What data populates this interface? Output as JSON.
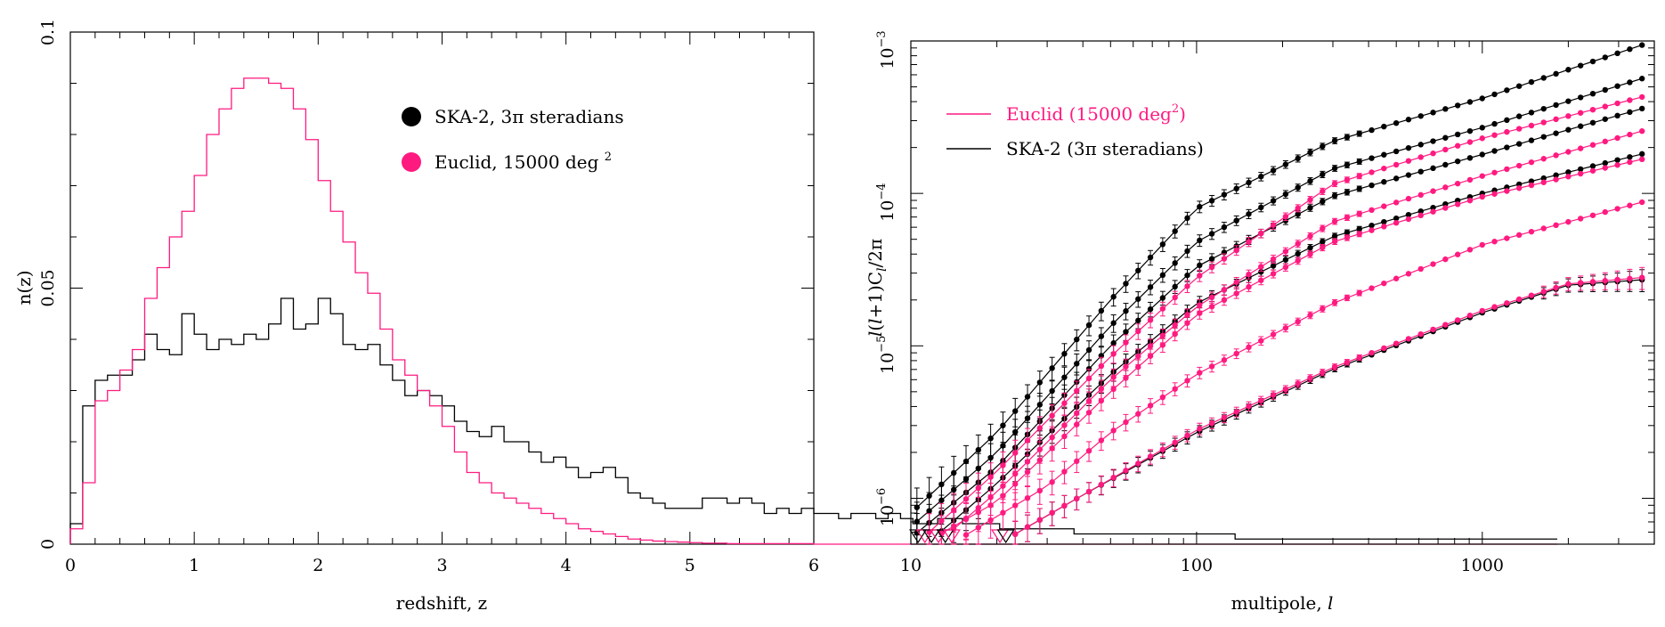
{
  "colors": {
    "ska": "#000000",
    "euclid": "#ff1a80"
  },
  "chart_data": [
    {
      "type": "line",
      "subtype": "histogram",
      "ylabel": "n(z)",
      "xlabel": "redshift, z",
      "xlim": [
        0,
        6
      ],
      "ylim": [
        0,
        0.1
      ],
      "x_ticks": [
        "0",
        "1",
        "2",
        "3",
        "4",
        "5",
        "6"
      ],
      "y_ticks": [
        "0",
        "0.05",
        "0.1"
      ],
      "legend": {
        "position": "top-right",
        "ska": "SKA-2, 3π steradians",
        "euclid_prefix": "Euclid, 15000 deg",
        "euclid_sup": "2"
      },
      "bin_width": 0.1,
      "series": [
        {
          "name": "SKA-2, 3π steradians",
          "color": "#000000",
          "values": [
            0.004,
            0.027,
            0.032,
            0.033,
            0.033,
            0.036,
            0.041,
            0.038,
            0.037,
            0.045,
            0.041,
            0.038,
            0.04,
            0.039,
            0.041,
            0.04,
            0.043,
            0.048,
            0.042,
            0.043,
            0.048,
            0.045,
            0.039,
            0.038,
            0.039,
            0.035,
            0.032,
            0.029,
            0.03,
            0.029,
            0.027,
            0.024,
            0.022,
            0.021,
            0.023,
            0.02,
            0.02,
            0.018,
            0.016,
            0.017,
            0.015,
            0.013,
            0.014,
            0.015,
            0.013,
            0.01,
            0.009,
            0.008,
            0.007,
            0.007,
            0.007,
            0.009,
            0.009,
            0.008,
            0.009,
            0.008,
            0.006,
            0.007,
            0.006,
            0.007,
            0.006,
            0.006,
            0.005,
            0.006,
            0.006,
            0.005,
            0.006,
            0.005,
            0.004,
            0.004,
            0.005,
            0.005,
            0.004,
            0.004,
            0.004,
            0.003,
            0.003,
            0.003,
            0.003,
            0.003,
            0.003,
            0.002,
            0.002,
            0.002,
            0.002,
            0.002,
            0.002,
            0.002,
            0.002,
            0.002,
            0.002,
            0.002,
            0.002,
            0.002,
            0.001,
            0.001,
            0.001,
            0.001,
            0.001,
            0.001,
            0.001,
            0.001,
            0.001,
            0.001,
            0.001,
            0.001,
            0.001,
            0.001,
            0.001,
            0.001,
            0.001,
            0.001,
            0.001,
            0.001,
            0.001,
            0.001,
            0.001,
            0.001,
            0.001,
            0.001
          ]
        },
        {
          "name": "Euclid, 15000 deg2",
          "color": "#ff1a80",
          "values": [
            0.003,
            0.012,
            0.028,
            0.03,
            0.034,
            0.038,
            0.048,
            0.054,
            0.06,
            0.065,
            0.072,
            0.08,
            0.085,
            0.089,
            0.091,
            0.091,
            0.09,
            0.089,
            0.085,
            0.079,
            0.071,
            0.065,
            0.059,
            0.053,
            0.049,
            0.042,
            0.036,
            0.033,
            0.03,
            0.027,
            0.023,
            0.018,
            0.014,
            0.012,
            0.01,
            0.009,
            0.008,
            0.007,
            0.006,
            0.005,
            0.004,
            0.003,
            0.0025,
            0.002,
            0.0015,
            0.001,
            0.0008,
            0.0006,
            0.0005,
            0.0004,
            0.0003,
            0.0002,
            0.0002,
            0.0001,
            0.0001,
            0.0001,
            0.0001,
            0.0001,
            0.0001,
            0.0001,
            0,
            0,
            0,
            0,
            0,
            0,
            0,
            0,
            0,
            0,
            0,
            0,
            0,
            0,
            0,
            0,
            0,
            0,
            0,
            0,
            0,
            0,
            0,
            0,
            0,
            0,
            0,
            0,
            0,
            0,
            0,
            0,
            0,
            0,
            0,
            0,
            0,
            0,
            0,
            0,
            0,
            0,
            0,
            0,
            0,
            0,
            0,
            0,
            0,
            0,
            0,
            0,
            0,
            0,
            0,
            0,
            0,
            0,
            0,
            0
          ]
        }
      ]
    },
    {
      "type": "line",
      "subtype": "log-log with error bars",
      "ylabel_parts": [
        "l",
        "(",
        "l",
        "+1)C",
        "l",
        "/2π"
      ],
      "xlabel_prefix": "multipole, ",
      "xlabel_ell": "l",
      "xscale": "log",
      "yscale": "log",
      "xlim": [
        10,
        4000
      ],
      "ylim": [
        5e-07,
        0.001
      ],
      "x_ticks": [
        "10",
        "100",
        "1000"
      ],
      "y_ticks": [
        {
          "base": "10",
          "exp": "−6",
          "value": 1e-06
        },
        {
          "base": "10",
          "exp": "−5",
          "value": 1e-05
        },
        {
          "base": "10",
          "exp": "−4",
          "value": 0.0001
        },
        {
          "base": "10",
          "exp": "−3",
          "value": 0.001
        }
      ],
      "legend": {
        "position": "top-left",
        "euclid_prefix": "Euclid (15000 deg",
        "euclid_sup": "2",
        "euclid_suffix": ")",
        "ska": "SKA-2 (3π steradians)"
      },
      "series": [
        {
          "name": "SKA-2",
          "color": "#000000",
          "anchors": [
            [
              10,
              8e-07
            ],
            [
              20,
              2.7e-06
            ],
            [
              50,
              2e-05
            ],
            [
              100,
              8e-05
            ],
            [
              300,
              0.00022
            ],
            [
              1000,
              0.00042
            ],
            [
              4000,
              0.001
            ]
          ]
        },
        {
          "name": "SKA-2",
          "color": "#000000",
          "anchors": [
            [
              10,
              6.5e-07
            ],
            [
              20,
              2e-06
            ],
            [
              50,
              1.35e-05
            ],
            [
              100,
              4.8e-05
            ],
            [
              300,
              0.000145
            ],
            [
              1000,
              0.00027
            ],
            [
              4000,
              0.0006
            ]
          ]
        },
        {
          "name": "SKA-2",
          "color": "#000000",
          "anchors": [
            [
              10,
              5.5e-07
            ],
            [
              20,
              1.6e-06
            ],
            [
              50,
              1e-05
            ],
            [
              100,
              3.3e-05
            ],
            [
              300,
              9.6e-05
            ],
            [
              1000,
              0.00018
            ],
            [
              4000,
              0.00038
            ]
          ]
        },
        {
          "name": "SKA-2",
          "color": "#000000",
          "anchors": [
            [
              12,
              5.5e-07
            ],
            [
              20,
              1.25e-06
            ],
            [
              50,
              6.5e-06
            ],
            [
              100,
              1.9e-05
            ],
            [
              300,
              5.2e-05
            ],
            [
              1000,
              0.0001
            ],
            [
              4000,
              0.00019
            ]
          ]
        },
        {
          "name": "SKA-2",
          "color": "#000000",
          "anchors": [
            [
              22,
              5.5e-07
            ],
            [
              40,
              1.05e-06
            ],
            [
              100,
              2.7e-06
            ],
            [
              300,
              7e-06
            ],
            [
              1000,
              1.65e-05
            ],
            [
              2000,
              2.5e-05
            ],
            [
              4000,
              2.75e-05
            ]
          ]
        },
        {
          "name": "Euclid",
          "color": "#ff1a80",
          "anchors": [
            [
              11,
              5.5e-07
            ],
            [
              20,
              1.5e-06
            ],
            [
              50,
              8.5e-06
            ],
            [
              100,
              2.8e-05
            ],
            [
              300,
              0.000115
            ],
            [
              1000,
              0.00023
            ],
            [
              4000,
              0.00045
            ]
          ]
        },
        {
          "name": "Euclid",
          "color": "#ff1a80",
          "anchors": [
            [
              13,
              5.5e-07
            ],
            [
              20,
              1.1e-06
            ],
            [
              50,
              6e-06
            ],
            [
              100,
              1.8e-05
            ],
            [
              300,
              6.5e-05
            ],
            [
              1000,
              0.00013
            ],
            [
              4000,
              0.00027
            ]
          ]
        },
        {
          "name": "Euclid",
          "color": "#ff1a80",
          "anchors": [
            [
              12,
              5.5e-07
            ],
            [
              20,
              9.5e-07
            ],
            [
              50,
              5e-06
            ],
            [
              100,
              1.6e-05
            ],
            [
              300,
              4.8e-05
            ],
            [
              1000,
              9.5e-05
            ],
            [
              4000,
              0.000175
            ]
          ]
        },
        {
          "name": "Euclid",
          "color": "#ff1a80",
          "anchors": [
            [
              15,
              5.5e-07
            ],
            [
              30,
              1.2e-06
            ],
            [
              50,
              2.7e-06
            ],
            [
              100,
              6.5e-06
            ],
            [
              300,
              1.9e-05
            ],
            [
              1000,
              4.6e-05
            ],
            [
              4000,
              9.2e-05
            ]
          ]
        },
        {
          "name": "Euclid",
          "color": "#ff1a80",
          "anchors": [
            [
              22,
              5.5e-07
            ],
            [
              40,
              1.05e-06
            ],
            [
              100,
              2.8e-06
            ],
            [
              300,
              7.2e-06
            ],
            [
              1000,
              1.7e-05
            ],
            [
              2000,
              2.55e-05
            ],
            [
              4000,
              2.85e-05
            ]
          ]
        }
      ]
    }
  ]
}
